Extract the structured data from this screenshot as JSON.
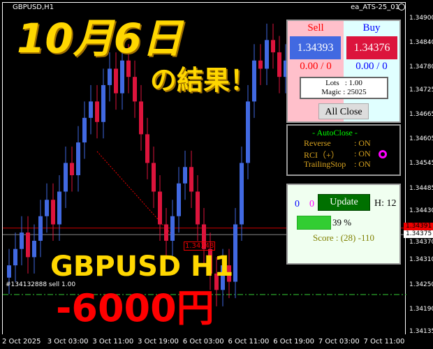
{
  "header": {
    "symbol": "GBPUSD,H1",
    "ea_name": "ea_ATS-25_01",
    "ea_icon": "sad-face-icon"
  },
  "price_axis": [
    "1.34900",
    "1.34840",
    "1.34780",
    "1.34725",
    "1.34665",
    "1.34605",
    "1.34545",
    "1.34485",
    "1.34430",
    "1.34370",
    "1.34310",
    "1.34250",
    "1.34190",
    "1.34135"
  ],
  "price_range": [
    1.34135,
    1.349
  ],
  "bid_tag": "1.34391",
  "ask_tag": "1.34375",
  "time_axis": [
    "2 Oct 2025",
    "3 Oct 03:00",
    "3 Oct 11:00",
    "3 Oct 19:00",
    "6 Oct 03:00",
    "6 Oct 11:00",
    "6 Oct 19:00",
    "7 Oct 03:00",
    "7 Oct 11:00"
  ],
  "candles": {
    "closes": [
      1.343,
      1.3434,
      1.3438,
      1.3432,
      1.3436,
      1.3442,
      1.3446,
      1.344,
      1.3448,
      1.3455,
      1.3452,
      1.346,
      1.3466,
      1.347,
      1.3465,
      1.3474,
      1.3478,
      1.3472,
      1.348,
      1.3476,
      1.347,
      1.3462,
      1.3455,
      1.3448,
      1.344,
      1.3436,
      1.3442,
      1.345,
      1.3454,
      1.3448,
      1.344,
      1.3434,
      1.3428,
      1.3424,
      1.343,
      1.3426,
      1.344,
      1.3455,
      1.347,
      1.348,
      1.3478,
      1.3485,
      1.3482,
      1.3476,
      1.348
    ],
    "bull_color": "#4169e1",
    "bear_color": "#dc143c"
  },
  "order_label": "#134132888 sell 1.00",
  "close_price_label": "1.34348",
  "overlay": {
    "date_title": "10月6日",
    "subtitle": "の結果！",
    "pair": "GBPUSD H1",
    "result": "-6000円"
  },
  "trade_panel": {
    "sell_label": "Sell",
    "buy_label": "Buy",
    "sell_price": "1.34393",
    "buy_price": "1.34376",
    "sell_pl": "0.00 / 0",
    "buy_pl": "0.00 / 0",
    "lots": "Lots   : 1.00",
    "magic": "Magic : 25025",
    "all_close": "All Close"
  },
  "autoclose_panel": {
    "title": "- AutoClose -",
    "rows": [
      {
        "label": "Reverse",
        "value": ": ON"
      },
      {
        "label": "RCI（+）",
        "value": ": ON"
      },
      {
        "label": "TrailingStop",
        "value": ": ON"
      }
    ],
    "indicator_icon": "magenta-ring-icon"
  },
  "score_panel": {
    "count_a": "0",
    "count_b": "0",
    "update": "Update",
    "h": "H: 12",
    "progress_percent": 39,
    "progress_label": "39 %",
    "score": "Score : (28) -110"
  }
}
